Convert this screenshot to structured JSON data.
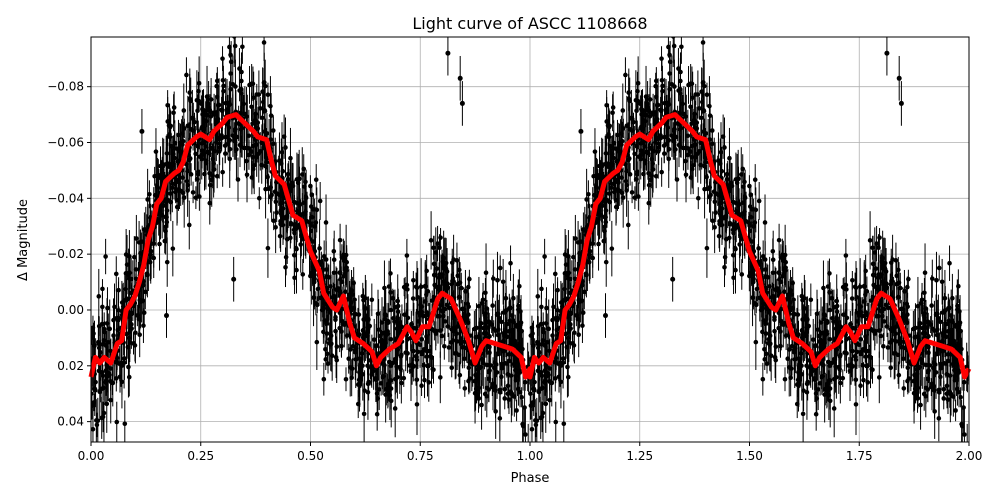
{
  "chart_data": {
    "type": "scatter",
    "title": "Light curve of ASCC 1108668",
    "xlabel": "Phase",
    "ylabel": "Δ Magnitude",
    "xlim": [
      0,
      2
    ],
    "ylim": [
      0.0473,
      -0.0978
    ],
    "y_inverted": true,
    "grid": true,
    "xticks": [
      "0.00",
      "0.25",
      "0.50",
      "0.75",
      "1.00",
      "1.25",
      "1.50",
      "1.75",
      "2.00"
    ],
    "xtick_values": [
      0,
      0.25,
      0.5,
      0.75,
      1.0,
      1.25,
      1.5,
      1.75,
      2.0
    ],
    "yticks": [
      "−0.08",
      "−0.06",
      "−0.04",
      "−0.02",
      "0.00",
      "0.02",
      "0.04"
    ],
    "ytick_values": [
      -0.08,
      -0.06,
      -0.04,
      -0.02,
      0.0,
      0.02,
      0.04
    ],
    "colors": {
      "points": "#000000",
      "model": "#ff0000",
      "grid": "#b0b0b0"
    },
    "model_curve": {
      "description_of_repeat": "phase 0-1 repeated for 1-2",
      "phase": [
        0.0,
        0.01,
        0.02,
        0.03,
        0.045,
        0.06,
        0.07,
        0.08,
        0.09,
        0.1,
        0.11,
        0.12,
        0.13,
        0.14,
        0.15,
        0.16,
        0.17,
        0.19,
        0.2,
        0.21,
        0.22,
        0.24,
        0.25,
        0.27,
        0.28,
        0.3,
        0.31,
        0.33,
        0.35,
        0.37,
        0.38,
        0.4,
        0.41,
        0.42,
        0.44,
        0.46,
        0.48,
        0.5,
        0.52,
        0.53,
        0.55,
        0.56,
        0.575,
        0.59,
        0.6,
        0.62,
        0.64,
        0.65,
        0.66,
        0.68,
        0.7,
        0.72,
        0.73,
        0.74,
        0.755,
        0.77,
        0.79,
        0.8,
        0.82,
        0.84,
        0.86,
        0.875,
        0.89,
        0.9,
        0.92,
        0.94,
        0.96,
        0.98,
        0.99,
        1.0
      ],
      "mag": [
        0.024,
        0.017,
        0.019,
        0.017,
        0.019,
        0.012,
        0.011,
        0.0,
        -0.002,
        -0.005,
        -0.01,
        -0.016,
        -0.025,
        -0.03,
        -0.038,
        -0.04,
        -0.046,
        -0.049,
        -0.05,
        -0.053,
        -0.059,
        -0.062,
        -0.063,
        -0.061,
        -0.064,
        -0.067,
        -0.069,
        -0.07,
        -0.067,
        -0.064,
        -0.062,
        -0.061,
        -0.054,
        -0.048,
        -0.045,
        -0.034,
        -0.032,
        -0.021,
        -0.014,
        -0.006,
        -0.001,
        0.0,
        -0.005,
        0.005,
        0.01,
        0.012,
        0.015,
        0.02,
        0.017,
        0.014,
        0.012,
        0.006,
        0.008,
        0.011,
        0.006,
        0.006,
        -0.004,
        -0.006,
        -0.004,
        0.003,
        0.011,
        0.019,
        0.013,
        0.011,
        0.012,
        0.013,
        0.014,
        0.017,
        0.024,
        0.021
      ]
    },
    "outlier_points": [
      {
        "phase": 0.813,
        "mag": -0.092
      },
      {
        "phase": 0.841,
        "mag": -0.083
      },
      {
        "phase": 0.846,
        "mag": -0.074
      },
      {
        "phase": 0.116,
        "mag": -0.064
      },
      {
        "phase": 0.325,
        "mag": -0.011
      },
      {
        "phase": 0.172,
        "mag": 0.002
      }
    ]
  }
}
